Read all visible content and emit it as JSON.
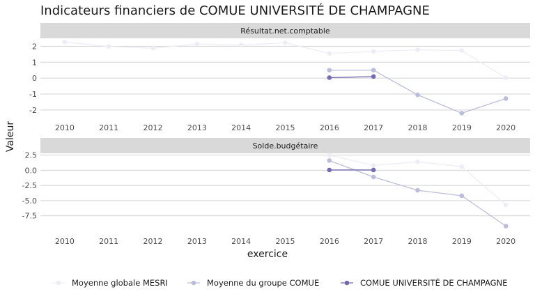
{
  "colors": {
    "mesri": "#eeedf5",
    "groupe": "#bcbddc",
    "etab": "#756bb1",
    "strip": "#d9d9d9",
    "grid": "#d3d3d3"
  },
  "chart_data": {
    "type": "line",
    "title": "Indicateurs financiers de COMUE UNIVERSITÉ DE CHAMPAGNE",
    "xlabel": "exercice",
    "ylabel": "Valeur",
    "legend_position": "bottom",
    "legend": [
      "Moyenne globale MESRI",
      "Moyenne du groupe COMUE",
      "COMUE UNIVERSITÉ DE CHAMPAGNE"
    ],
    "x": [
      2010,
      2011,
      2012,
      2013,
      2014,
      2015,
      2016,
      2017,
      2018,
      2019,
      2020
    ],
    "x_tick_labels": [
      "2010",
      "2011",
      "2012",
      "2013",
      "2014",
      "2015",
      "2016",
      "2017",
      "2018",
      "2019",
      "2020"
    ],
    "panels": [
      {
        "strip": "Résultat.net.comptable",
        "ylim": [
          -2.4,
          2.5
        ],
        "y_ticks": [
          2,
          1,
          0,
          -1,
          -2
        ],
        "y_tick_labels": [
          "2",
          "1",
          "0",
          "-1",
          "-2"
        ],
        "series": [
          {
            "name": "Moyenne globale MESRI",
            "color_key": "mesri",
            "values": [
              2.27,
              1.99,
              1.88,
              2.15,
              2.08,
              2.22,
              1.55,
              1.68,
              1.78,
              1.73,
              0.02
            ]
          },
          {
            "name": "Moyenne du groupe COMUE",
            "color_key": "groupe",
            "values": [
              null,
              null,
              null,
              null,
              null,
              null,
              0.5,
              0.5,
              -1.05,
              -2.2,
              -1.28
            ]
          },
          {
            "name": "COMUE UNIVERSITÉ DE CHAMPAGNE",
            "color_key": "etab",
            "values": [
              null,
              null,
              null,
              null,
              null,
              null,
              0.03,
              0.1,
              null,
              null,
              null
            ]
          }
        ]
      },
      {
        "strip": "Solde.budgétaire",
        "ylim": [
          -9.6,
          2.8
        ],
        "y_ticks": [
          2.5,
          0,
          -2.5,
          -5,
          -7.5
        ],
        "y_tick_labels": [
          "2.5",
          "0.0",
          "-2.5",
          "-5.0",
          "-7.5"
        ],
        "series": [
          {
            "name": "Moyenne globale MESRI",
            "color_key": "mesri",
            "values": [
              null,
              null,
              null,
              null,
              null,
              null,
              2.5,
              0.8,
              1.4,
              0.6,
              -5.7
            ]
          },
          {
            "name": "Moyenne du groupe COMUE",
            "color_key": "groupe",
            "values": [
              null,
              null,
              null,
              null,
              null,
              null,
              1.6,
              -1.1,
              -3.3,
              -4.2,
              -9.2
            ]
          },
          {
            "name": "COMUE UNIVERSITÉ DE CHAMPAGNE",
            "color_key": "etab",
            "values": [
              null,
              null,
              null,
              null,
              null,
              null,
              0.05,
              0.05,
              null,
              null,
              null
            ]
          }
        ]
      }
    ]
  }
}
